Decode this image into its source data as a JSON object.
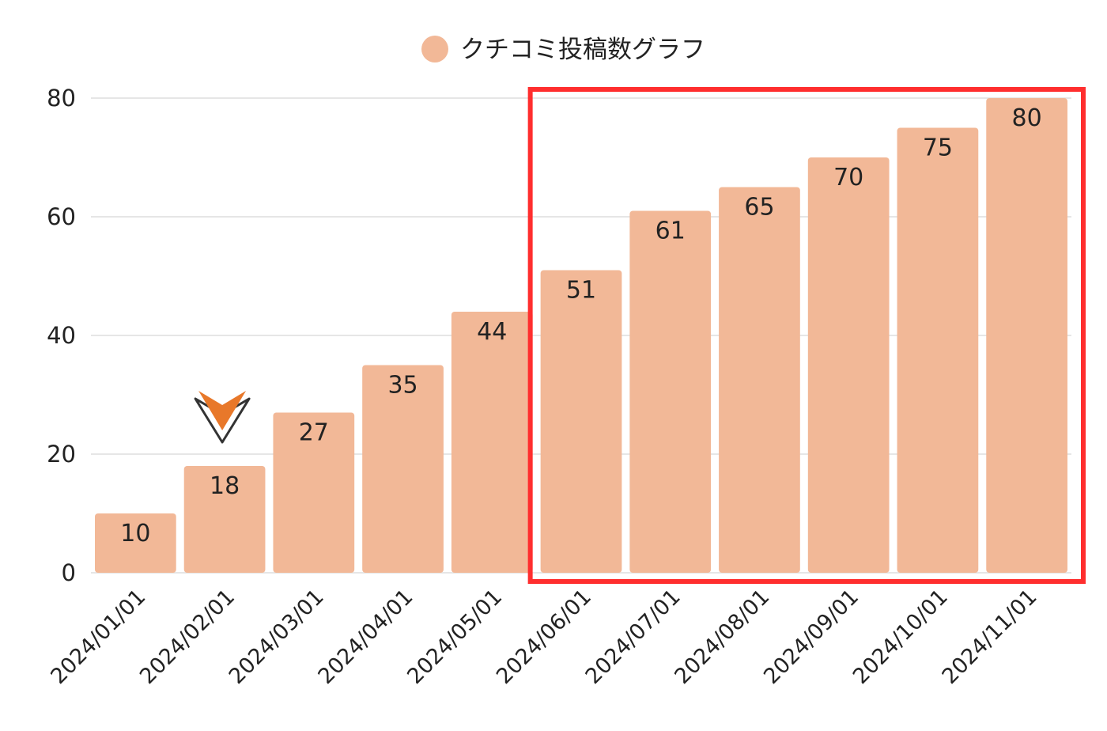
{
  "colors": {
    "bar": "#f2b897",
    "highlight_box": "#ff2e2e",
    "marker_fill": "#e8782a",
    "marker_stroke": "#333333"
  },
  "chart_data": {
    "type": "bar",
    "legend": {
      "label": "クチコミ投稿数グラフ",
      "position": "top-center"
    },
    "categories": [
      "2024/01/01",
      "2024/02/01",
      "2024/03/01",
      "2024/04/01",
      "2024/05/01",
      "2024/06/01",
      "2024/07/01",
      "2024/08/01",
      "2024/09/01",
      "2024/10/01",
      "2024/11/01"
    ],
    "series": [
      {
        "name": "クチコミ投稿数グラフ",
        "values": [
          10,
          18,
          27,
          35,
          44,
          51,
          61,
          65,
          70,
          75,
          80
        ]
      }
    ],
    "ylim": [
      0,
      80
    ],
    "yticks": [
      0,
      20,
      40,
      60,
      80
    ],
    "yticks_labels": [
      "0",
      "20",
      "40",
      "60",
      "80"
    ],
    "grid": true,
    "data_labels": true,
    "annotations": [
      {
        "type": "highlight-box",
        "from_category": "2024/06/01",
        "to_category": "2024/11/01"
      },
      {
        "type": "down-arrow-marker",
        "category": "2024/02/01"
      }
    ]
  }
}
